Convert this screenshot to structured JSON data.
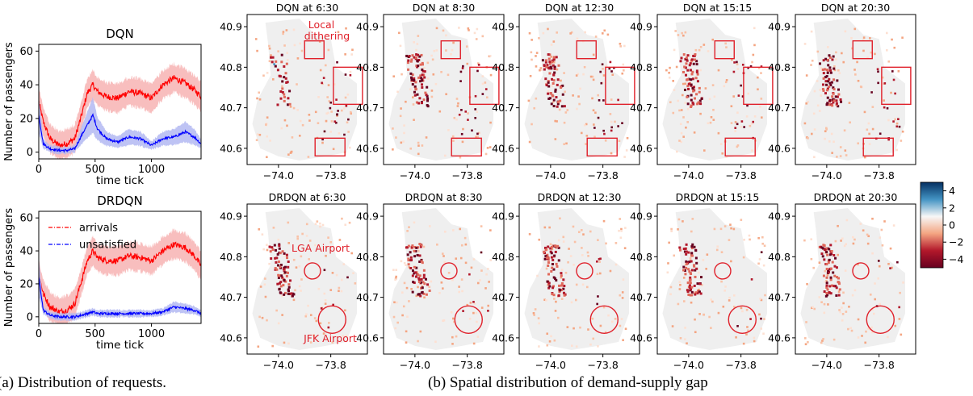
{
  "captions": {
    "a": "(a) Distribution of requests.",
    "b": "(b) Spatial distribution of demand-supply gap"
  },
  "colors": {
    "arrivals": "#ff0000",
    "arrivals_band": "#f7b3b3",
    "unsatisfied": "#0000ff",
    "unsatisfied_band": "#b3b8f2",
    "annotation": "#e0202a",
    "land": "#efefef",
    "colorbar_stops": [
      "#053061",
      "#4393c3",
      "#f7f7f7",
      "#f4a582",
      "#b2182b",
      "#67001f"
    ]
  },
  "chart_data": [
    {
      "type": "line",
      "title": "DQN",
      "xlabel": "time tick",
      "ylabel": "Number of passengers",
      "xlim": [
        0,
        1440
      ],
      "ylim": [
        -4,
        64
      ],
      "xticks": [
        0,
        500,
        1000
      ],
      "yticks": [
        0,
        20,
        40,
        60
      ],
      "series": [
        {
          "name": "arrivals",
          "x": [
            0,
            40,
            100,
            180,
            250,
            320,
            380,
            430,
            480,
            520,
            600,
            700,
            800,
            900,
            1000,
            1100,
            1200,
            1300,
            1380,
            1440
          ],
          "values": [
            30,
            18,
            8,
            4,
            5,
            8,
            22,
            35,
            40,
            36,
            33,
            32,
            36,
            35,
            32,
            40,
            44,
            41,
            37,
            33
          ]
        },
        {
          "name": "unsatisfied",
          "x": [
            0,
            40,
            100,
            180,
            250,
            320,
            380,
            430,
            480,
            520,
            600,
            700,
            800,
            900,
            1000,
            1100,
            1200,
            1300,
            1380,
            1440
          ],
          "values": [
            22,
            5,
            2,
            1,
            1,
            2,
            10,
            16,
            22,
            14,
            8,
            6,
            9,
            8,
            4,
            8,
            9,
            12,
            9,
            5
          ]
        }
      ]
    },
    {
      "type": "line",
      "title": "DRDQN",
      "xlabel": "time tick",
      "ylabel": "Number of passengers",
      "xlim": [
        0,
        1440
      ],
      "ylim": [
        -4,
        64
      ],
      "xticks": [
        0,
        500,
        1000
      ],
      "yticks": [
        0,
        20,
        40,
        60
      ],
      "legend": "upper-left",
      "series": [
        {
          "name": "arrivals",
          "x": [
            0,
            40,
            100,
            180,
            250,
            320,
            380,
            430,
            480,
            520,
            600,
            700,
            800,
            900,
            1000,
            1100,
            1200,
            1300,
            1380,
            1440
          ],
          "values": [
            26,
            14,
            6,
            3,
            4,
            8,
            22,
            34,
            40,
            36,
            34,
            34,
            37,
            36,
            34,
            40,
            44,
            42,
            37,
            31
          ]
        },
        {
          "name": "unsatisfied",
          "x": [
            0,
            40,
            100,
            180,
            250,
            320,
            380,
            430,
            480,
            520,
            600,
            700,
            800,
            900,
            1000,
            1100,
            1200,
            1300,
            1380,
            1440
          ],
          "values": [
            24,
            4,
            1,
            0,
            0,
            0,
            1,
            2,
            3,
            2,
            2,
            2,
            2,
            2,
            2,
            3,
            6,
            5,
            4,
            2
          ]
        }
      ]
    },
    {
      "type": "heatmap",
      "titles": [
        "DQN at 6:30",
        "DQN at 8:30",
        "DQN at 12:30",
        "DQN at 15:15",
        "DQN at 20:30",
        "DRDQN at 6:30",
        "DRDQN at 8:30",
        "DRDQN at 12:30",
        "DRDQN at 15:15",
        "DRDQN at 20:30"
      ],
      "xticks": [
        -74.0,
        -73.8
      ],
      "xtick_labels": [
        "−74.0",
        "−73.8"
      ],
      "yticks": [
        40.6,
        40.7,
        40.8,
        40.9
      ],
      "xlim": [
        -74.12,
        -73.66
      ],
      "ylim": [
        40.56,
        40.93
      ],
      "annotations": {
        "local_dithering_line1": "Local",
        "local_dithering_line2": "dithering",
        "lga": "LGA Airport",
        "jfk": "JFK Airport"
      },
      "colorbar": {
        "ticks": [
          4,
          2,
          0,
          -2,
          -4
        ],
        "tick_labels": [
          "4",
          "2",
          "0",
          "−2",
          "−4"
        ],
        "range": [
          -5,
          5
        ]
      }
    }
  ]
}
